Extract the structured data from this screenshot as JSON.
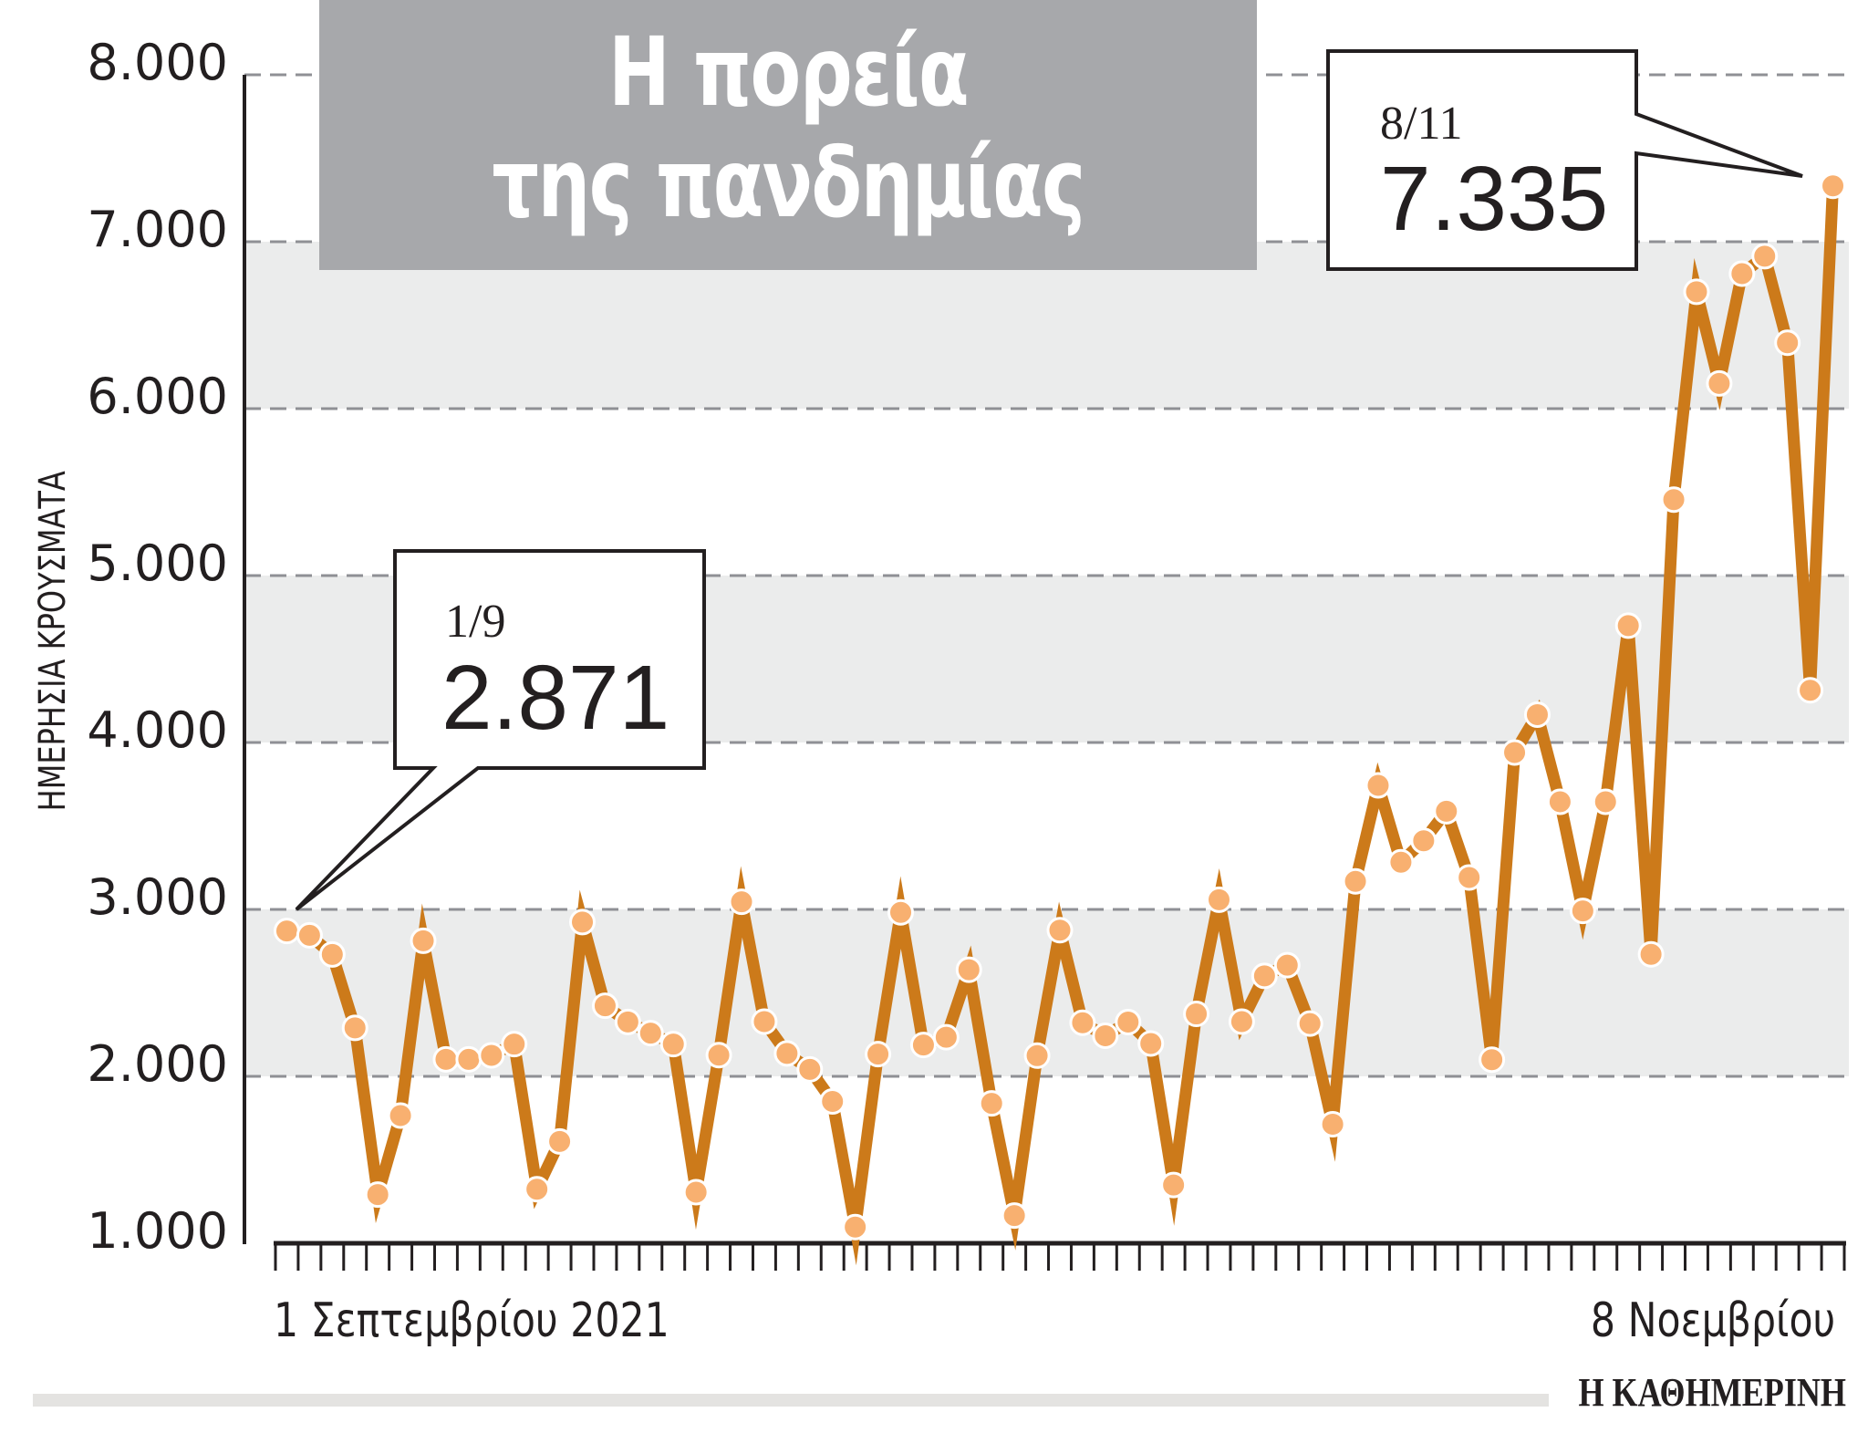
{
  "title": {
    "line1": "Η πορεία",
    "line2": "της πανδημίας"
  },
  "y_axis": {
    "title": "ΗΜΕΡΗΣΙΑ ΚΡΟΥΣΜΑΤΑ",
    "ticks": [
      "8.000",
      "7.000",
      "6.000",
      "5.000",
      "4.000",
      "3.000",
      "2.000",
      "1.000"
    ]
  },
  "x_axis": {
    "start_label": "1 Σεπτεμβρίου 2021",
    "end_label": "8 Νοεμβρίου"
  },
  "callouts": [
    {
      "date": "1/9",
      "value": "2.871"
    },
    {
      "date": "8/11",
      "value": "7.335"
    }
  ],
  "brand": "Η ΚΑΘΗΜΕΡΙΝΗ",
  "colors": {
    "line": "#cc7a1a",
    "point_fill": "#f8b070",
    "point_stroke": "#ffffff",
    "band": "#ebecec",
    "gridline": "#8f9095",
    "title_bg": "#a7a8ab",
    "axis": "#231f20"
  },
  "chart_data": {
    "type": "line",
    "title": "Η πορεία της πανδημίας",
    "xlabel": "",
    "ylabel": "ΗΜΕΡΗΣΙΑ ΚΡΟΥΣΜΑΤΑ",
    "x_start": "1 Σεπτεμβρίου 2021",
    "x_end": "8 Νοεμβρίου",
    "ylim": [
      1000,
      8000
    ],
    "yticks": [
      1000,
      2000,
      3000,
      4000,
      5000,
      6000,
      7000,
      8000
    ],
    "grid": "dashed horizontal, alternating shaded bands",
    "legend": "none",
    "series": [
      {
        "name": "Ημερήσια κρούσματα",
        "values": [
          2871,
          2845,
          2730,
          2290,
          1292,
          1765,
          2812,
          2102,
          2102,
          2126,
          2193,
          1324,
          1610,
          2924,
          2423,
          2326,
          2259,
          2193,
          1306,
          2127,
          3046,
          2328,
          2137,
          2042,
          1850,
          1097,
          2133,
          2982,
          2188,
          2234,
          2639,
          1838,
          1166,
          2124,
          2876,
          2321,
          2243,
          2325,
          2197,
          1349,
          2374,
          3058,
          2328,
          2602,
          2666,
          2316,
          1713,
          3168,
          3743,
          3283,
          3411,
          3588,
          3191,
          2100,
          3940,
          4167,
          3645,
          2991,
          3645,
          4700,
          2731,
          5455,
          6700,
          6151,
          6809,
          6913,
          6395,
          4313,
          7335
        ]
      }
    ],
    "annotations": [
      {
        "x_index": 0,
        "label": "1/9",
        "value_label": "2.871"
      },
      {
        "x_index": 68,
        "label": "8/11",
        "value_label": "7.335"
      }
    ]
  }
}
